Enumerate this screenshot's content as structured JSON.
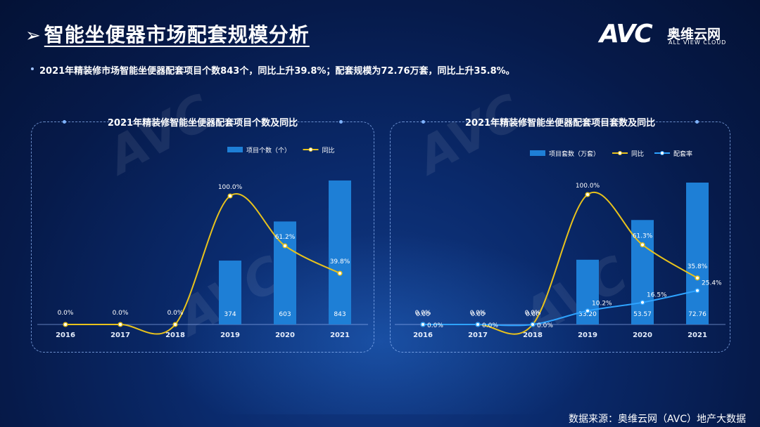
{
  "header": {
    "arrow": "➢",
    "title": "智能坐便器市场配套规模分析"
  },
  "logo": {
    "mark": "AVC",
    "cn": "奥维云网",
    "en": "ALL VIEW CLOUD"
  },
  "bullet": "2021年精装修市场智能坐便器配套项目个数843个，同比上升39.8%；配套规模为72.76万套，同比上升35.8%。",
  "footer": "数据来源：奥维云网（AVC）地产大数据",
  "colors": {
    "bar": "#1e7fd6",
    "yoy": "#e8c21c",
    "rate": "#2ea3ff"
  },
  "chart_data": [
    {
      "type": "bar",
      "title": "2021年精装修智能坐便器配套项目个数及同比",
      "categories": [
        "2016",
        "2017",
        "2018",
        "2019",
        "2020",
        "2021"
      ],
      "series": [
        {
          "name": "项目个数（个）",
          "kind": "bar",
          "values": [
            0,
            0,
            0,
            374,
            603,
            843
          ],
          "labels": [
            "",
            "",
            "",
            "374",
            "603",
            "843"
          ]
        },
        {
          "name": "同比",
          "kind": "line",
          "values": [
            0,
            0,
            0,
            100.0,
            61.2,
            39.8
          ],
          "labels": [
            "0.0%",
            "0.0%",
            "0.0%",
            "100.0%",
            "61.2%",
            "39.8%"
          ]
        }
      ],
      "legend": "top-right"
    },
    {
      "type": "bar",
      "title": "2021年精装修智能坐便器配套项目套数及同比",
      "categories": [
        "2016",
        "2017",
        "2018",
        "2019",
        "2020",
        "2021"
      ],
      "series": [
        {
          "name": "项目套数（万套）",
          "kind": "bar",
          "values": [
            0,
            0,
            0,
            33.2,
            53.57,
            72.76
          ],
          "labels": [
            "0.00",
            "0.00",
            "0.00",
            "33.20",
            "53.57",
            "72.76"
          ]
        },
        {
          "name": "同比",
          "kind": "line",
          "values": [
            0,
            0,
            0,
            100.0,
            61.3,
            35.8
          ],
          "labels": [
            "0.0%",
            "0.0%",
            "0.0%",
            "100.0%",
            "61.3%",
            "35.8%"
          ]
        },
        {
          "name": "配套率",
          "kind": "line",
          "values": [
            0,
            0,
            0,
            10.2,
            16.5,
            25.4
          ],
          "labels": [
            "0.0%",
            "0.0%",
            "0.0%",
            "10.2%",
            "16.5%",
            "25.4%"
          ]
        }
      ],
      "legend": "top-right"
    }
  ]
}
